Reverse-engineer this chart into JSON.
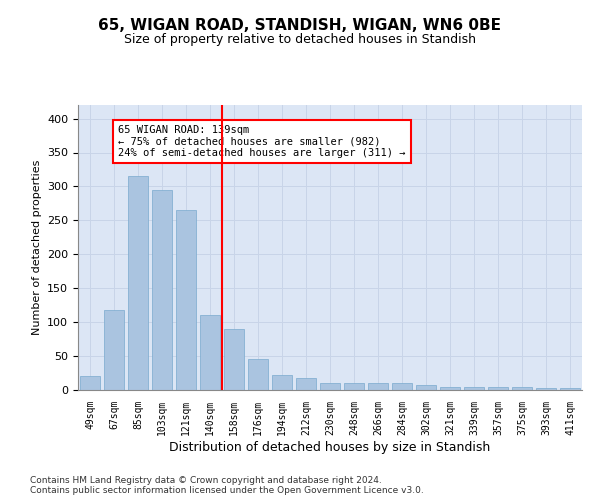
{
  "title": "65, WIGAN ROAD, STANDISH, WIGAN, WN6 0BE",
  "subtitle": "Size of property relative to detached houses in Standish",
  "xlabel": "Distribution of detached houses by size in Standish",
  "ylabel": "Number of detached properties",
  "categories": [
    "49sqm",
    "67sqm",
    "85sqm",
    "103sqm",
    "121sqm",
    "140sqm",
    "158sqm",
    "176sqm",
    "194sqm",
    "212sqm",
    "230sqm",
    "248sqm",
    "266sqm",
    "284sqm",
    "302sqm",
    "321sqm",
    "339sqm",
    "357sqm",
    "375sqm",
    "393sqm",
    "411sqm"
  ],
  "values": [
    20,
    118,
    315,
    295,
    265,
    110,
    90,
    45,
    22,
    18,
    10,
    10,
    10,
    10,
    8,
    5,
    5,
    5,
    5,
    3,
    3
  ],
  "bar_color": "#aac4e0",
  "bar_edge_color": "#7aaace",
  "grid_color": "#c8d4e8",
  "background_color": "#dce6f5",
  "red_line_x": 5.5,
  "annotation_text": "65 WIGAN ROAD: 139sqm\n← 75% of detached houses are smaller (982)\n24% of semi-detached houses are larger (311) →",
  "annotation_box_color": "#ffffff",
  "annotation_text_color": "#000000",
  "footer_text": "Contains HM Land Registry data © Crown copyright and database right 2024.\nContains public sector information licensed under the Open Government Licence v3.0.",
  "ylim": [
    0,
    420
  ],
  "yticks": [
    0,
    50,
    100,
    150,
    200,
    250,
    300,
    350,
    400
  ]
}
